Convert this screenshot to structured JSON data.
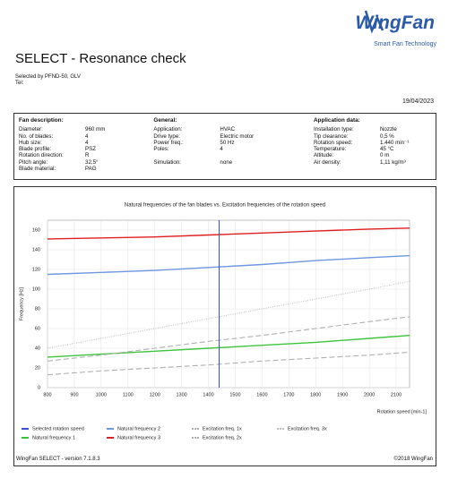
{
  "header": {
    "logo": "WingFan",
    "tagline": "Smart Fan Technology",
    "title": "SELECT - Resonance check",
    "selected_by": "Selected by PFND-50, GLV",
    "tel": "Tel:",
    "date": "19/04/2023"
  },
  "info": {
    "columns": [
      {
        "heading": "Fan description:",
        "rows": [
          {
            "label": "Diameter:",
            "value": "960 mm"
          },
          {
            "label": "No. of blades:",
            "value": "4"
          },
          {
            "label": "Hub size:",
            "value": "4"
          },
          {
            "label": "Blade profile:",
            "value": "PSZ"
          },
          {
            "label": "Rotation direction:",
            "value": "R"
          },
          {
            "label": "Pitch angle:",
            "value": "32,5°"
          },
          {
            "label": "Blade material:",
            "value": "PAG"
          }
        ]
      },
      {
        "heading": "General:",
        "rows": [
          {
            "label": "Application:",
            "value": "HVAC"
          },
          {
            "label": "Drive type:",
            "value": "Electric motor"
          },
          {
            "label": "Power freq.:",
            "value": "50 Hz"
          },
          {
            "label": "Poles:",
            "value": "4"
          },
          {
            "label": "Simulation:",
            "value": "none"
          }
        ]
      },
      {
        "heading": "Application data:",
        "rows": [
          {
            "label": "Installation type:",
            "value": "Nozzle"
          },
          {
            "label": "Tip clearance:",
            "value": "0,5 %"
          },
          {
            "label": "Rotation speed:",
            "value": "1.440 min⁻¹"
          },
          {
            "label": "Temperature:",
            "value": "45 °C"
          },
          {
            "label": "Altitude:",
            "value": "0 m"
          },
          {
            "label": "Air density:",
            "value": "1,11 kg/m³"
          }
        ]
      }
    ]
  },
  "chart_data": {
    "type": "line",
    "title": "Natural frequencies of the fan blades vs. Excitation frequencies of the rotation speed",
    "x_label": "Rotation speed [min-1]",
    "y_label": "Frequency [Hz]",
    "x": [
      800,
      1000,
      1200,
      1400,
      1600,
      1800,
      2000,
      2150
    ],
    "xlim": [
      800,
      2150
    ],
    "xticks": [
      800,
      900,
      1000,
      1100,
      1200,
      1300,
      1400,
      1500,
      1600,
      1700,
      1800,
      1900,
      2000,
      2100
    ],
    "ylim": [
      0,
      170
    ],
    "yticks": [
      0,
      20,
      40,
      60,
      80,
      100,
      120,
      140,
      160
    ],
    "grid": true,
    "marker_line": {
      "name": "Selected rotation speed",
      "color": "#3a4fc8",
      "x": 1440
    },
    "series": [
      {
        "name": "Natural frequency 1",
        "color": "#3cc43c",
        "style": "solid",
        "values": [
          31,
          34,
          37,
          40,
          43,
          46,
          50,
          53
        ]
      },
      {
        "name": "Natural frequency 2",
        "color": "#6f97e0",
        "style": "solid",
        "values": [
          115,
          117,
          119,
          122,
          125,
          129,
          132,
          134
        ]
      },
      {
        "name": "Natural frequency 3",
        "color": "#e02020",
        "style": "solid",
        "values": [
          151,
          152,
          153,
          155,
          157,
          159,
          161,
          162
        ]
      },
      {
        "name": "Excitation freq. 1x",
        "color": "#b0b0b0",
        "style": "dashed",
        "values": [
          13,
          17,
          20,
          23,
          27,
          30,
          33,
          36
        ]
      },
      {
        "name": "Excitation freq. 2x",
        "color": "#b0b0b0",
        "style": "dashed",
        "values": [
          27,
          33,
          40,
          47,
          53,
          60,
          67,
          72
        ]
      },
      {
        "name": "Excitation freq. 3x",
        "color": "#c0c0c0",
        "style": "dotted",
        "values": [
          40,
          50,
          60,
          70,
          80,
          90,
          100,
          108
        ]
      }
    ]
  },
  "footer": {
    "version": "WingFan SELECT - version 7.1.8.3",
    "copyright": "©2018 WingFan"
  }
}
